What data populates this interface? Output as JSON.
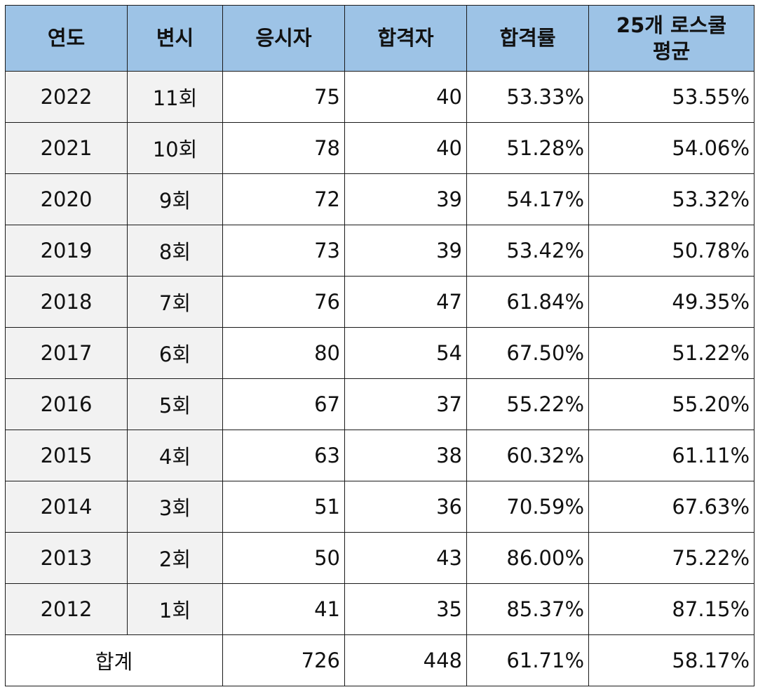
{
  "headers": [
    "연도",
    "변시",
    "응시자",
    "합격자",
    "합격률",
    "25개 로스쿨",
    "평균"
  ],
  "rows": [
    {
      "year": "2022",
      "round": "11회",
      "applicants": "75",
      "passers": "40",
      "rate": "53.33%",
      "avg": "53.55%"
    },
    {
      "year": "2021",
      "round": "10회",
      "applicants": "78",
      "passers": "40",
      "rate": "51.28%",
      "avg": "54.06%"
    },
    {
      "year": "2020",
      "round": "9회",
      "applicants": "72",
      "passers": "39",
      "rate": "54.17%",
      "avg": "53.32%"
    },
    {
      "year": "2019",
      "round": "8회",
      "applicants": "73",
      "passers": "39",
      "rate": "53.42%",
      "avg": "50.78%"
    },
    {
      "year": "2018",
      "round": "7회",
      "applicants": "76",
      "passers": "47",
      "rate": "61.84%",
      "avg": "49.35%"
    },
    {
      "year": "2017",
      "round": "6회",
      "applicants": "80",
      "passers": "54",
      "rate": "67.50%",
      "avg": "51.22%"
    },
    {
      "year": "2016",
      "round": "5회",
      "applicants": "67",
      "passers": "37",
      "rate": "55.22%",
      "avg": "55.20%"
    },
    {
      "year": "2015",
      "round": "4회",
      "applicants": "63",
      "passers": "38",
      "rate": "60.32%",
      "avg": "61.11%"
    },
    {
      "year": "2014",
      "round": "3회",
      "applicants": "51",
      "passers": "36",
      "rate": "70.59%",
      "avg": "67.63%"
    },
    {
      "year": "2013",
      "round": "2회",
      "applicants": "50",
      "passers": "43",
      "rate": "86.00%",
      "avg": "75.22%"
    },
    {
      "year": "2012",
      "round": "1회",
      "applicants": "41",
      "passers": "35",
      "rate": "85.37%",
      "avg": "87.15%"
    }
  ],
  "total": {
    "label": "합계",
    "applicants": "726",
    "passers": "448",
    "rate": "61.71%",
    "avg": "58.17%"
  }
}
